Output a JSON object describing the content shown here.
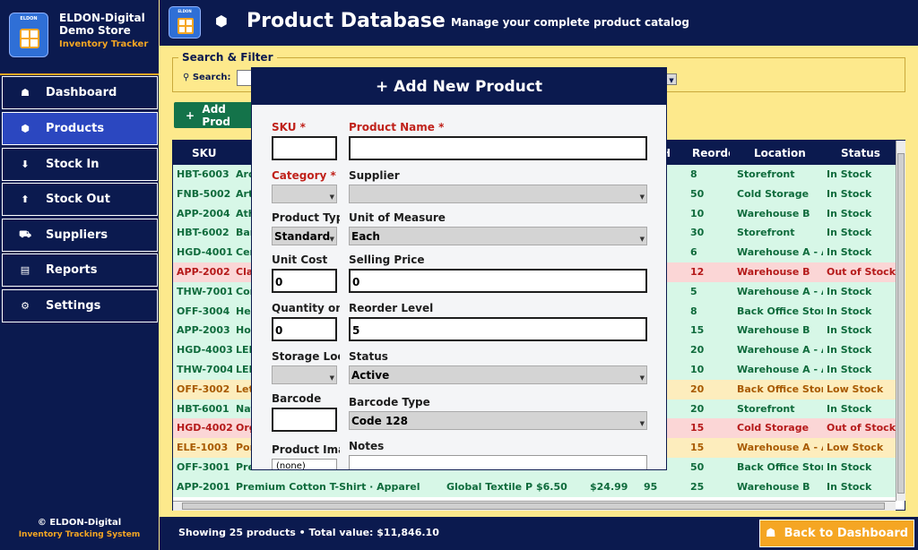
{
  "sidebar": {
    "logo_tag": "ELDON",
    "title": "ELDON-Digital Demo Store",
    "subtitle": "Inventory Tracker",
    "items": [
      {
        "label": "Dashboard",
        "icon": "home-icon",
        "glyph": "☗"
      },
      {
        "label": "Products",
        "icon": "box-icon",
        "glyph": "⬢"
      },
      {
        "label": "Stock In",
        "icon": "stock-in-icon",
        "glyph": "⬇"
      },
      {
        "label": "Stock Out",
        "icon": "stock-out-icon",
        "glyph": "⬆"
      },
      {
        "label": "Suppliers",
        "icon": "truck-icon",
        "glyph": "⛟"
      },
      {
        "label": "Reports",
        "icon": "report-icon",
        "glyph": "▤"
      },
      {
        "label": "Settings",
        "icon": "gear-icon",
        "glyph": "⚙"
      }
    ],
    "active_item": "Products",
    "footer_copyright": "© ELDON-Digital",
    "footer_system": "Inventory Tracking System"
  },
  "header": {
    "logo_tag": "ELDON",
    "title": "Product Database",
    "subtitle": "Manage your complete product catalog"
  },
  "search": {
    "legend": "Search & Filter",
    "label": "Search:"
  },
  "toolbar": {
    "add_label": "Add Prod"
  },
  "table": {
    "columns": [
      "SKU",
      "H",
      "Reorde",
      "Location",
      "Status"
    ],
    "rows": [
      {
        "sku": "HBT-6003",
        "name": "Aro",
        "h": "",
        "reorder": "8",
        "location": "Storefront",
        "status": "In Stock",
        "tone": "green"
      },
      {
        "sku": "FNB-5002",
        "name": "Art",
        "h": "",
        "reorder": "50",
        "location": "Cold Storage",
        "status": "In Stock",
        "tone": "green"
      },
      {
        "sku": "APP-2004",
        "name": "Ath",
        "h": "",
        "reorder": "10",
        "location": "Warehouse B",
        "status": "In Stock",
        "tone": "green"
      },
      {
        "sku": "HBT-6002",
        "name": "Bar",
        "h": "",
        "reorder": "30",
        "location": "Storefront",
        "status": "In Stock",
        "tone": "green"
      },
      {
        "sku": "HGD-4001",
        "name": "Cer",
        "h": "",
        "reorder": "6",
        "location": "Warehouse A - A",
        "status": "In Stock",
        "tone": "green"
      },
      {
        "sku": "APP-2002",
        "name": "Cla",
        "h": "",
        "reorder": "12",
        "location": "Warehouse B",
        "status": "Out of Stock",
        "tone": "red"
      },
      {
        "sku": "THW-7001",
        "name": "Cor",
        "h": "",
        "reorder": "5",
        "location": "Warehouse A - A",
        "status": "In Stock",
        "tone": "green"
      },
      {
        "sku": "OFF-3004",
        "name": "Hea",
        "h": "",
        "reorder": "8",
        "location": "Back Office Stor",
        "status": "In Stock",
        "tone": "green"
      },
      {
        "sku": "APP-2003",
        "name": "Hoo",
        "h": "",
        "reorder": "15",
        "location": "Warehouse B",
        "status": "In Stock",
        "tone": "green"
      },
      {
        "sku": "HGD-4003",
        "name": "LED",
        "h": "",
        "reorder": "20",
        "location": "Warehouse A - A",
        "status": "In Stock",
        "tone": "green"
      },
      {
        "sku": "THW-7004",
        "name": "LED",
        "h": "",
        "reorder": "10",
        "location": "Warehouse A - A",
        "status": "In Stock",
        "tone": "green"
      },
      {
        "sku": "OFF-3002",
        "name": "Let",
        "h": "",
        "reorder": "20",
        "location": "Back Office Stor",
        "status": "Low Stock",
        "tone": "yellow"
      },
      {
        "sku": "HBT-6001",
        "name": "Nat",
        "h": "",
        "reorder": "20",
        "location": "Storefront",
        "status": "In Stock",
        "tone": "green"
      },
      {
        "sku": "HGD-4002",
        "name": "Org",
        "h": "",
        "reorder": "15",
        "location": "Cold Storage",
        "status": "Out of Stock",
        "tone": "red"
      },
      {
        "sku": "ELE-1003",
        "name": "Por",
        "h": "",
        "reorder": "15",
        "location": "Warehouse A - A",
        "status": "Low Stock",
        "tone": "yellow"
      },
      {
        "sku": "OFF-3001",
        "name": "Pre",
        "h": "",
        "reorder": "50",
        "location": "Back Office Stor",
        "status": "In Stock",
        "tone": "green"
      },
      {
        "sku": "APP-2001",
        "name": "Premium Cotton T-Shirt · Apparel",
        "supplier": "Global Textile Pa",
        "cost": "$6.50",
        "price": "$24.99",
        "h": "95",
        "reorder": "25",
        "location": "Warehouse B",
        "status": "In Stock",
        "tone": "green"
      }
    ]
  },
  "bottom": {
    "status": "Showing 25 products  •  Total value: $11,846.10",
    "back_label": "Back to Dashboard"
  },
  "modal": {
    "title": "+ Add New Product",
    "fields": {
      "sku_label": "SKU *",
      "name_label": "Product Name *",
      "category_label": "Category *",
      "supplier_label": "Supplier",
      "product_type_label": "Product Typ",
      "product_type_value": "Standard",
      "uom_label": "Unit of Measure",
      "uom_value": "Each",
      "unit_cost_label": "Unit Cost",
      "unit_cost_value": "0",
      "selling_price_label": "Selling Price",
      "selling_price_value": "0",
      "quantity_label": "Quantity on",
      "quantity_value": "0",
      "reorder_label": "Reorder Level",
      "reorder_value": "5",
      "storage_label": "Storage Loc",
      "status_label": "Status",
      "status_value": "Active",
      "barcode_label": "Barcode",
      "barcode_type_label": "Barcode Type",
      "barcode_type_value": "Code 128",
      "image_label": "Product Imag",
      "image_value": "(none)",
      "notes_label": "Notes"
    }
  },
  "colors": {
    "navy": "#0b1a4f",
    "accent_orange": "#f5a623",
    "page_bg": "#fde98c",
    "active_nav": "#2b47c0",
    "add_button": "#14734a",
    "required": "#c0221b"
  }
}
